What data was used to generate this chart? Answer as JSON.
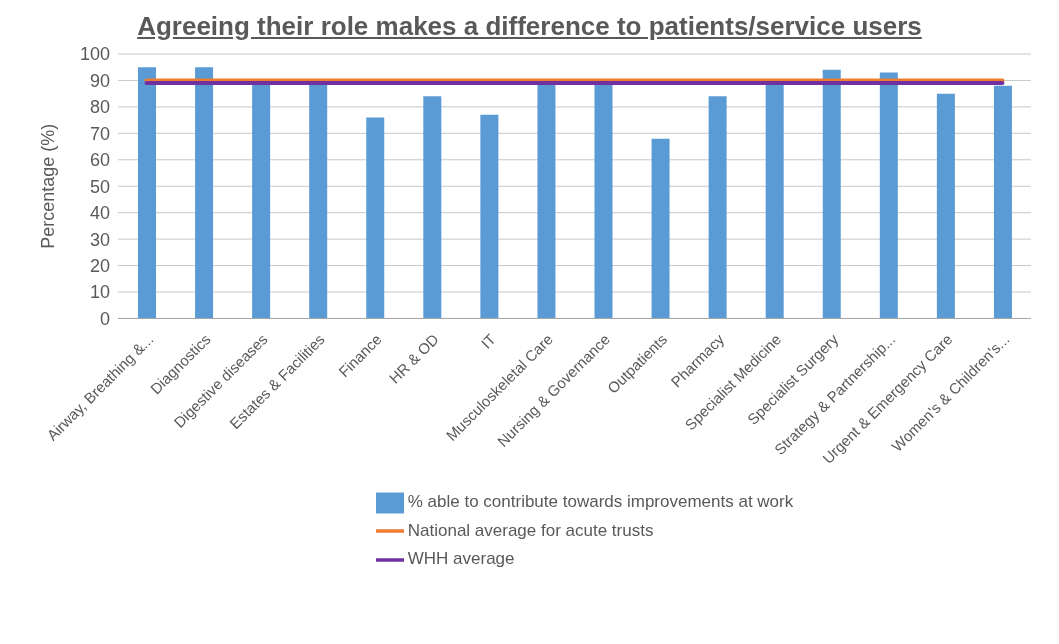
{
  "chart_data": {
    "type": "bar",
    "title": "Agreeing their role makes a difference to patients/service users",
    "ylabel": "Percentage (%)",
    "categories": [
      "Airway, Breathing &...",
      "Diagnostics",
      "Digestive diseases",
      "Estates & Facilities",
      "Finance",
      "HR & OD",
      "IT",
      "Musculoskeletal Care",
      "Nursing & Governance",
      "Outpatients",
      "Pharmacy",
      "Specialist Medicine",
      "Specialist Surgery",
      "Strategy & Partnership...",
      "Urgent & Emergency Care",
      "Women's & Children's..."
    ],
    "series": [
      {
        "name": "% able to contribute towards improvements at work",
        "color": "#5b9bd5",
        "values": [
          95,
          95,
          89,
          89,
          76,
          84,
          77,
          89,
          89,
          68,
          84,
          89,
          94,
          93,
          85,
          88
        ]
      },
      {
        "name": "National average for acute trusts",
        "type": "line",
        "color": "#ed7d31",
        "values": [
          90,
          90,
          90,
          90,
          90,
          90,
          90,
          90,
          90,
          90,
          90,
          90,
          90,
          90,
          90,
          90
        ]
      },
      {
        "name": "WHH average",
        "type": "line",
        "color": "#7030a0",
        "values": [
          89,
          89,
          89,
          89,
          89,
          89,
          89,
          89,
          89,
          89,
          89,
          89,
          89,
          89,
          89,
          89
        ]
      }
    ],
    "ylim": [
      0,
      100
    ],
    "yticks": [
      0,
      10,
      20,
      30,
      40,
      50,
      60,
      70,
      80,
      90,
      100
    ],
    "grid": "y",
    "legend": "bottom",
    "marker": "none",
    "line_style": "solid"
  }
}
